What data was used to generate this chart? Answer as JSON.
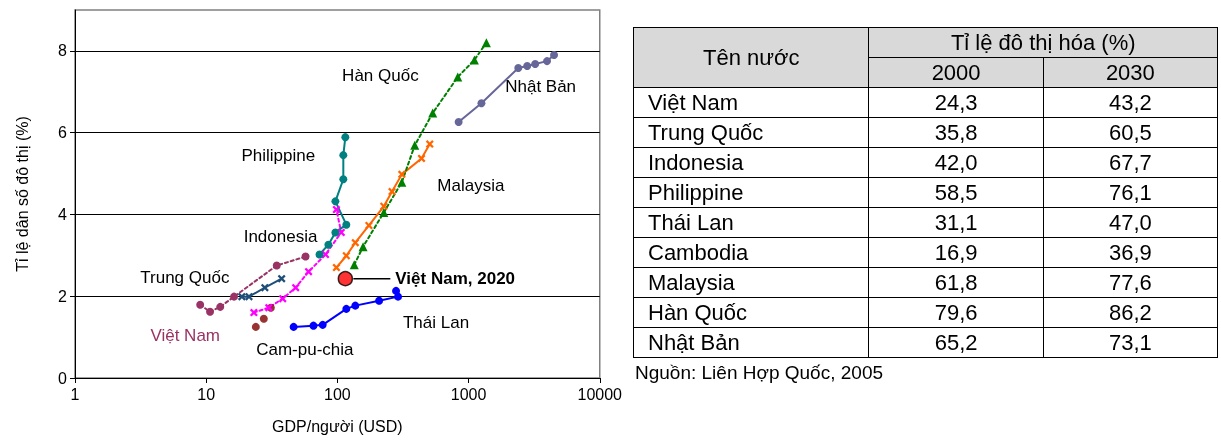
{
  "chart_data": [
    {
      "type": "line",
      "xlabel": "GDP/người (USD)",
      "ylabel": "Tỉ lệ dân số đô thị (%)",
      "log": "x",
      "xlim": [
        1,
        10000
      ],
      "xticks": [
        1,
        10,
        100,
        1000,
        10000
      ],
      "ylim": [
        0,
        9
      ],
      "yticks": [
        0,
        2,
        4,
        6,
        8
      ],
      "grid": "y",
      "legend": false,
      "series": [
        {
          "name": "Việt Nam",
          "color": "#993366",
          "marker": "circle",
          "line_style": "dotted",
          "x": [
            9.0,
            10.7,
            12.8,
            16.3,
            34.5,
            57.2
          ],
          "values": [
            1.79,
            1.62,
            1.74,
            1.99,
            2.75,
            2.97
          ]
        },
        {
          "type": "scatter",
          "name": "Cam-pu-chia",
          "color": "#800000",
          "marker": "circle",
          "x": [
            23.9,
            27.5,
            31.1
          ],
          "values": [
            1.25,
            1.45,
            1.72
          ]
        },
        {
          "name": "Trung Quốc",
          "color": "#1f4e79",
          "marker": "cross",
          "line_style": "solid",
          "x": [
            18.7,
            21.2,
            28.0,
            37.6
          ],
          "values": [
            1.99,
            1.99,
            2.21,
            2.43
          ]
        },
        {
          "name": "Indonesia",
          "color": "#ff00ff",
          "marker": "cross",
          "line_style": "dotted",
          "x": [
            23.1,
            30.0,
            38.3,
            48.1,
            60.3,
            81.2,
            107,
            98.3
          ],
          "values": [
            1.6,
            1.72,
            1.94,
            2.21,
            2.6,
            3.02,
            3.56,
            4.12
          ]
        },
        {
          "name": "Philippine",
          "color": "#008080",
          "marker": "circle",
          "line_style": "solid",
          "x": [
            73.1,
            85.4,
            96.6,
            117,
            96.6,
            111,
            111,
            115
          ],
          "values": [
            3.02,
            3.26,
            3.56,
            3.75,
            4.32,
            4.86,
            5.45,
            5.89
          ]
        },
        {
          "name": "Malaysia",
          "color": "#ff6600",
          "marker": "cross",
          "line_style": "solid",
          "x": [
            98.3,
            117,
            137,
            174,
            226,
            261,
            310,
            438,
            506
          ],
          "values": [
            2.7,
            2.99,
            3.31,
            3.73,
            4.2,
            4.56,
            4.98,
            5.37,
            5.72
          ]
        },
        {
          "name": "Hàn Quốc",
          "color": "#008000",
          "marker": "triangle",
          "line_style": "dotted",
          "x": [
            134.5,
            157,
            226,
            310,
            389,
            533,
            827,
            1108,
            1367
          ],
          "values": [
            2.77,
            3.21,
            4.05,
            4.79,
            5.69,
            6.48,
            7.36,
            7.78,
            8.2
          ]
        },
        {
          "name": "Nhật Bản",
          "color": "#666699",
          "marker": "circle",
          "line_style": "solid",
          "x": [
            840,
            1253,
            2393,
            2799,
            3220,
            3964,
            4483
          ],
          "values": [
            6.26,
            6.72,
            7.58,
            7.63,
            7.68,
            7.75,
            7.9
          ]
        },
        {
          "name": "Thái Lan",
          "color": "#0000ff",
          "marker": "circle",
          "line_style": "solid",
          "x": [
            46.4,
            65.7,
            77.3,
            117,
            137,
            208,
            290,
            280
          ],
          "values": [
            1.25,
            1.28,
            1.3,
            1.69,
            1.77,
            1.89,
            1.99,
            2.13
          ]
        },
        {
          "type": "scatter",
          "color": "#ff0000",
          "marker": "circle",
          "x": [
            115
          ],
          "values": [
            2.43
          ]
        }
      ],
      "annotations": [
        {
          "text": "Việt Nam, 2020",
          "x": 115,
          "y": 2.43
        }
      ]
    },
    {
      "type": "other",
      "title": "Tỉ lệ đô thị hóa (%)",
      "ylabel": "Tên nước",
      "categories": [
        "Việt Nam",
        "Trung Quốc",
        "Indonesia",
        "Philippine",
        "Thái Lan",
        "Cambodia",
        "Malaysia",
        "Hàn Quốc",
        "Nhật Bản"
      ],
      "series": [
        {
          "name": "2000",
          "values": [
            24.3,
            35.8,
            42.0,
            58.5,
            31.1,
            16.9,
            61.8,
            79.6,
            65.2
          ],
          "value_labels": [
            "24,3",
            "35,8",
            "42,0",
            "58,5",
            "31,1",
            "16,9",
            "61,8",
            "79,6",
            "65,2"
          ]
        },
        {
          "name": "2030",
          "values": [
            43.2,
            60.5,
            67.7,
            76.1,
            47.0,
            36.9,
            77.6,
            86.2,
            73.1
          ],
          "value_labels": [
            "43,2",
            "60,5",
            "67,7",
            "76,1",
            "47,0",
            "36,9",
            "77,6",
            "86,2",
            "73,1"
          ]
        }
      ],
      "annotations": [
        "Nguồn: Liên Hợp Quốc, 2005"
      ]
    }
  ]
}
